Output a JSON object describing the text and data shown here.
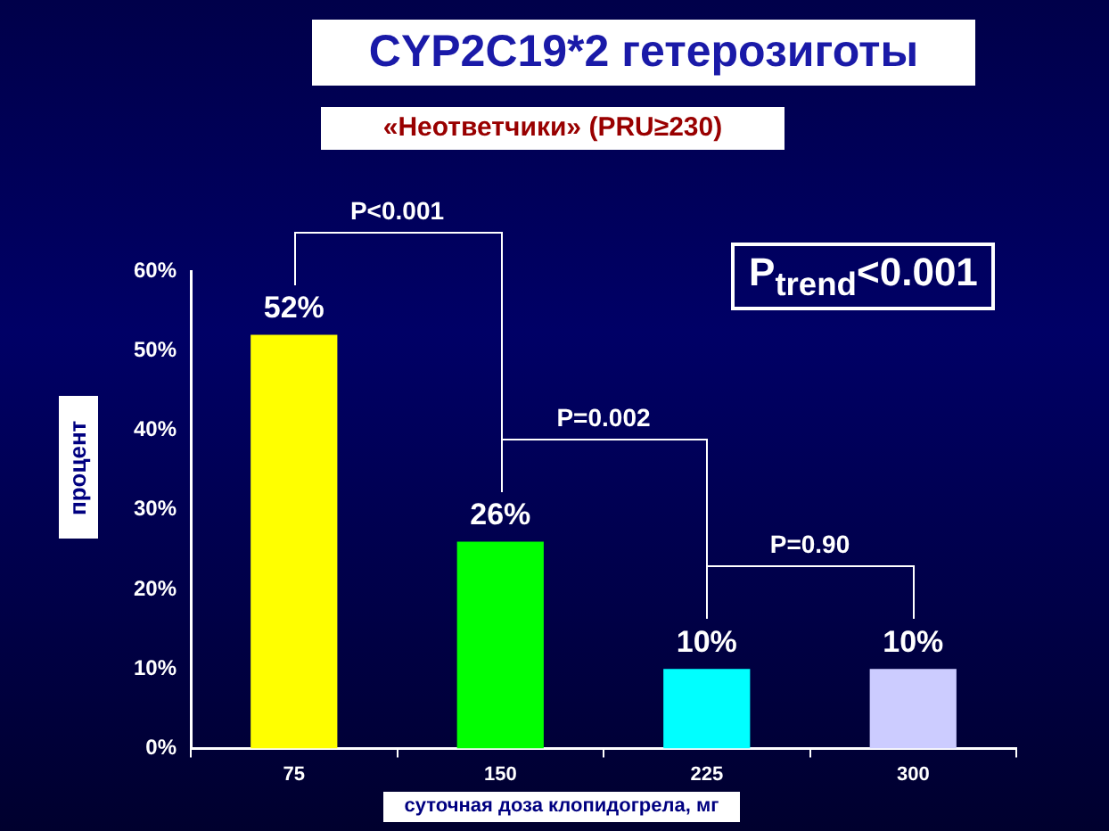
{
  "chart_data": {
    "type": "bar",
    "title": "CYP2C19*2 гетерозиготы",
    "subtitle": "«Неответчики» (PRU≥230)",
    "xlabel": "суточная доза клопидогрела, мг",
    "ylabel": "процент",
    "categories": [
      "75",
      "150",
      "225",
      "300"
    ],
    "values": [
      52,
      26,
      10,
      10
    ],
    "colors": [
      "#ffff00",
      "#00ff00",
      "#00ffff",
      "#ccccff"
    ],
    "value_labels": [
      "52%",
      "26%",
      "10%",
      "10%"
    ],
    "ylim": [
      0,
      60
    ],
    "yticks": [
      {
        "value": 0,
        "label": "0%"
      },
      {
        "value": 10,
        "label": "10%"
      },
      {
        "value": 20,
        "label": "20%"
      },
      {
        "value": 30,
        "label": "30%"
      },
      {
        "value": 40,
        "label": "40%"
      },
      {
        "value": 50,
        "label": "50%"
      },
      {
        "value": 60,
        "label": "60%"
      }
    ],
    "annotations": [
      "P<0.001",
      "P=0.002",
      "P=0.90",
      "P$_{trend}$<0.001"
    ],
    "grid": false,
    "legend": false
  }
}
